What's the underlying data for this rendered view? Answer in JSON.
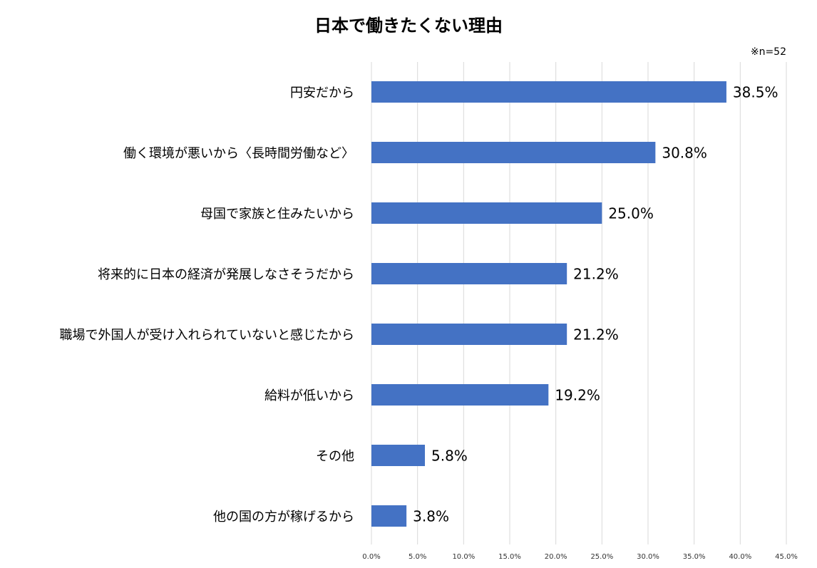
{
  "chart_data": {
    "type": "bar",
    "orientation": "horizontal",
    "title": "日本で働きたくない理由",
    "note": "※n=52",
    "categories": [
      "円安だから",
      "働く環境が悪いから〈長時間労働など〉",
      "母国で家族と住みたいから",
      "将来的に日本の経済が発展しなさそうだから",
      "職場で外国人が受け入れられていないと感じたから",
      "給料が低いから",
      "その他",
      "他の国の方が稼げるから"
    ],
    "values": [
      38.5,
      30.8,
      25.0,
      21.2,
      21.2,
      19.2,
      5.8,
      3.8
    ],
    "value_labels": [
      "38.5%",
      "30.8%",
      "25.0%",
      "21.2%",
      "21.2%",
      "19.2%",
      "5.8%",
      "3.8%"
    ],
    "xlim": [
      0,
      45
    ],
    "x_ticks": [
      "0.0%",
      "5.0%",
      "10.0%",
      "15.0%",
      "20.0%",
      "25.0%",
      "30.0%",
      "35.0%",
      "40.0%",
      "45.0%"
    ],
    "grid": true,
    "bar_color": "#4472C4",
    "grid_color": "#D9D9D9"
  }
}
